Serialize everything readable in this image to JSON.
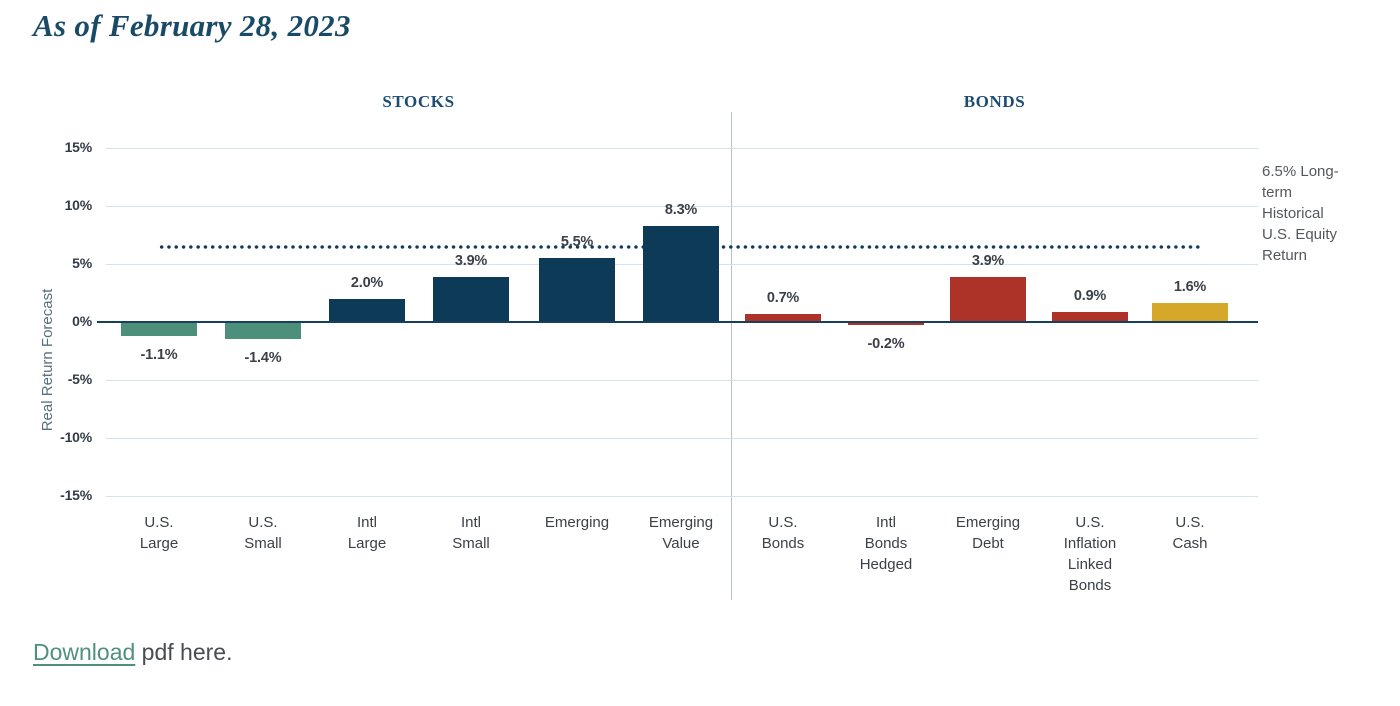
{
  "page": {
    "title": "As of February 28, 2023",
    "footer": {
      "link_text": "Download",
      "rest_text": " pdf here."
    }
  },
  "colors": {
    "title_text": "#1a4b66",
    "header_text": "#1c4c74",
    "gridline": "#d4e2ec",
    "zero_line": "#16405e",
    "dotted": "#123a5c",
    "tick_text": "#323c47",
    "value_text": "#3b4147",
    "axis_title_text": "#55707e",
    "annotation_text": "#54585d",
    "divider": "#b4c1c9",
    "link": "#4f9080",
    "footer_text": "#484d52",
    "bar_teal": "#4c8f7b",
    "bar_navy": "#0d3a57",
    "bar_red": "#ad3228",
    "bar_gold": "#d5a829"
  },
  "chart_data": {
    "type": "bar",
    "title": "",
    "xlabel": "",
    "ylabel": "Real Return Forecast",
    "ylim": [
      -15,
      15
    ],
    "ytick_step": 5,
    "ytick_labels": [
      "15%",
      "10%",
      "5%",
      "0%",
      "-5%",
      "-10%",
      "-15%"
    ],
    "grid": "horizontal",
    "legend": "none",
    "sections": [
      {
        "label": "STOCKS"
      },
      {
        "label": "BONDS"
      }
    ],
    "categories": [
      "U.S. Large",
      "U.S. Small",
      "Intl Large",
      "Intl Small",
      "Emerging",
      "Emerging Value",
      "U.S. Bonds",
      "Intl Bonds Hedged",
      "Emerging Debt",
      "U.S. Inflation Linked Bonds",
      "U.S. Cash"
    ],
    "values": [
      -1.1,
      -1.4,
      2.0,
      3.9,
      5.5,
      8.3,
      0.7,
      -0.2,
      3.9,
      0.9,
      1.6
    ],
    "bars": [
      {
        "category": "U.S. Large",
        "label_lines": "U.S.\nLarge",
        "value": -1.1,
        "display": "-1.1%",
        "color": "#4c8f7b",
        "section": "STOCKS"
      },
      {
        "category": "U.S. Small",
        "label_lines": "U.S.\nSmall",
        "value": -1.4,
        "display": "-1.4%",
        "color": "#4c8f7b",
        "section": "STOCKS"
      },
      {
        "category": "Intl Large",
        "label_lines": "Intl\nLarge",
        "value": 2.0,
        "display": "2.0%",
        "color": "#0d3a57",
        "section": "STOCKS"
      },
      {
        "category": "Intl Small",
        "label_lines": "Intl\nSmall",
        "value": 3.9,
        "display": "3.9%",
        "color": "#0d3a57",
        "section": "STOCKS"
      },
      {
        "category": "Emerging",
        "label_lines": "Emerging",
        "value": 5.5,
        "display": "5.5%",
        "color": "#0d3a57",
        "section": "STOCKS"
      },
      {
        "category": "Emerging Value",
        "label_lines": "Emerging\nValue",
        "value": 8.3,
        "display": "8.3%",
        "color": "#0d3a57",
        "section": "STOCKS"
      },
      {
        "category": "U.S. Bonds",
        "label_lines": "U.S.\nBonds",
        "value": 0.7,
        "display": "0.7%",
        "color": "#ad3228",
        "section": "BONDS"
      },
      {
        "category": "Intl Bonds Hedged",
        "label_lines": "Intl\nBonds\nHedged",
        "value": -0.2,
        "display": "-0.2%",
        "color": "#ad3228",
        "section": "BONDS"
      },
      {
        "category": "Emerging Debt",
        "label_lines": "Emerging\nDebt",
        "value": 3.9,
        "display": "3.9%",
        "color": "#ad3228",
        "section": "BONDS"
      },
      {
        "category": "U.S. Inflation Linked Bonds",
        "label_lines": "U.S.\nInflation\nLinked\nBonds",
        "value": 0.9,
        "display": "0.9%",
        "color": "#ad3228",
        "section": "BONDS"
      },
      {
        "category": "U.S. Cash",
        "label_lines": "U.S.\nCash",
        "value": 1.6,
        "display": "1.6%",
        "color": "#d5a829",
        "section": "BONDS"
      }
    ],
    "reference_line": {
      "value": 6.5,
      "style": "dotted",
      "label": "6.5% Long-term Historical U.S. Equity Return",
      "label_lines": "6.5% Long-\nterm\nHistorical\nU.S. Equity\nReturn"
    }
  }
}
